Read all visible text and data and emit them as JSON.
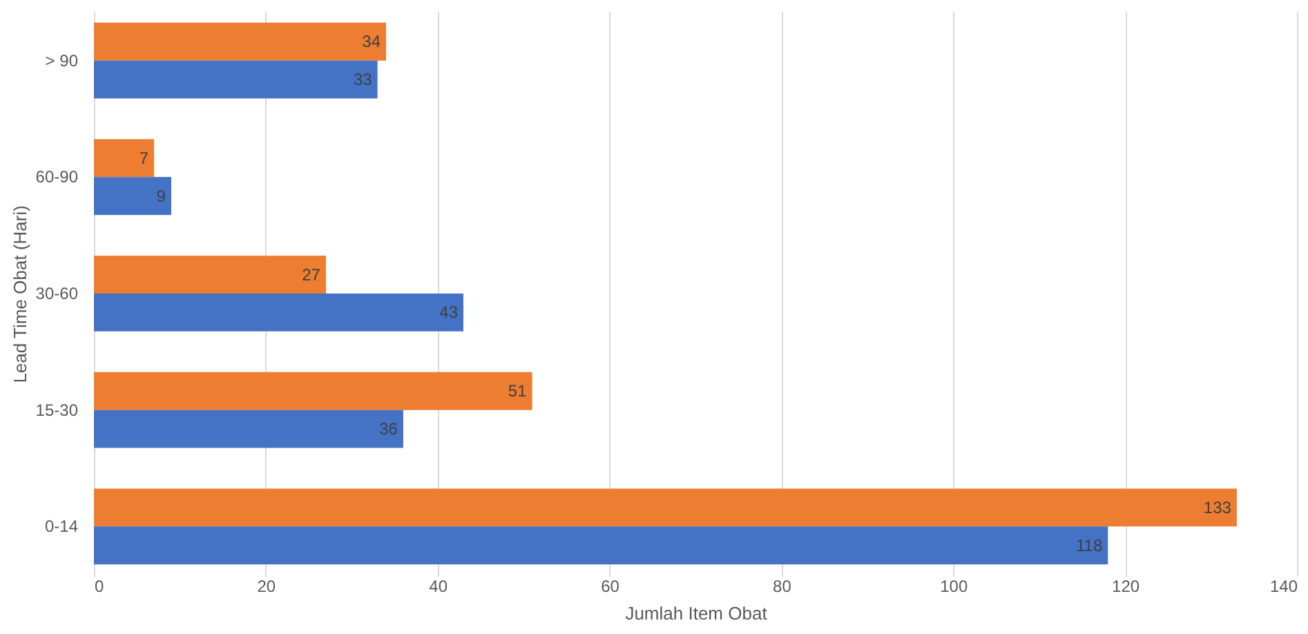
{
  "chart_data": {
    "type": "bar",
    "orientation": "horizontal",
    "xlabel": "Jumlah Item Obat",
    "ylabel": "Lead Time Obat (Hari)",
    "categories": [
      "> 90",
      "60-90",
      "30-60",
      "15-30",
      "0-14"
    ],
    "series": [
      {
        "color": "#ed7d31",
        "values": [
          34,
          7,
          27,
          51,
          133
        ]
      },
      {
        "color": "#4472c4",
        "values": [
          33,
          9,
          43,
          36,
          118
        ]
      }
    ],
    "xlim": [
      0,
      140
    ],
    "xticks": [
      0,
      20,
      40,
      60,
      80,
      100,
      120,
      140
    ],
    "grid": "x",
    "legend": false,
    "data_labels": true
  }
}
